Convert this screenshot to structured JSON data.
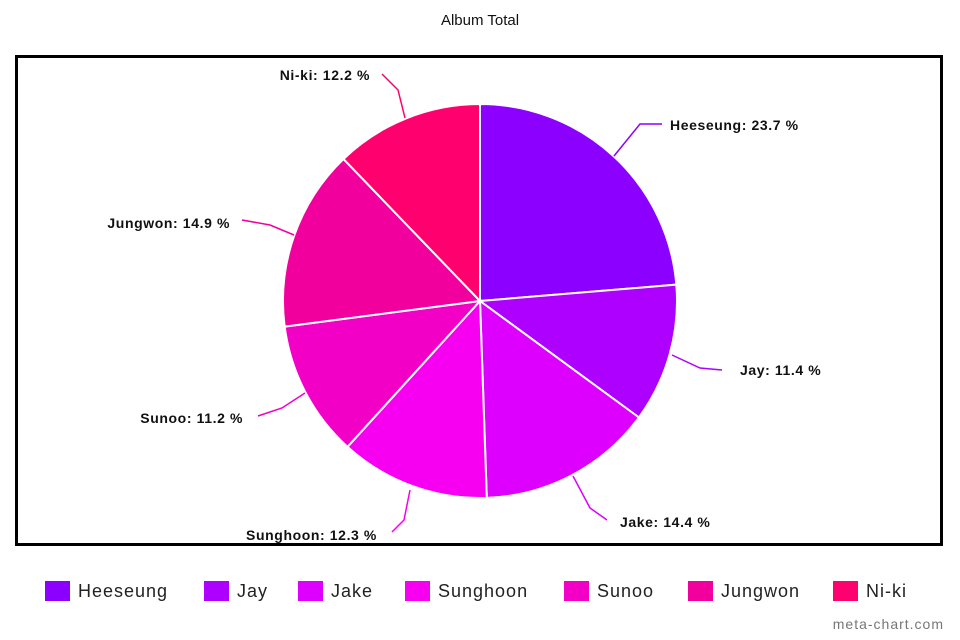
{
  "chart_data": {
    "type": "pie",
    "title": "Album Total",
    "slices": [
      {
        "name": "Heeseung",
        "value": 23.7,
        "label": "Heeseung: 23.7 %",
        "color": "#8b00ff"
      },
      {
        "name": "Jay",
        "value": 11.4,
        "label": "Jay: 11.4 %",
        "color": "#ae00ff"
      },
      {
        "name": "Jake",
        "value": 14.4,
        "label": "Jake: 14.4 %",
        "color": "#dd00ff"
      },
      {
        "name": "Sunghoon",
        "value": 12.3,
        "label": "Sunghoon: 12.3 %",
        "color": "#f700f2"
      },
      {
        "name": "Sunoo",
        "value": 11.2,
        "label": "Sunoo: 11.2 %",
        "color": "#f200c6"
      },
      {
        "name": "Jungwon",
        "value": 14.9,
        "label": "Jungwon: 14.9 %",
        "color": "#f2009e"
      },
      {
        "name": "Ni-ki",
        "value": 12.2,
        "label": "Ni-ki: 12.2 %",
        "color": "#ff006e"
      }
    ],
    "legend_position": "bottom"
  },
  "watermark": "meta-chart.com"
}
